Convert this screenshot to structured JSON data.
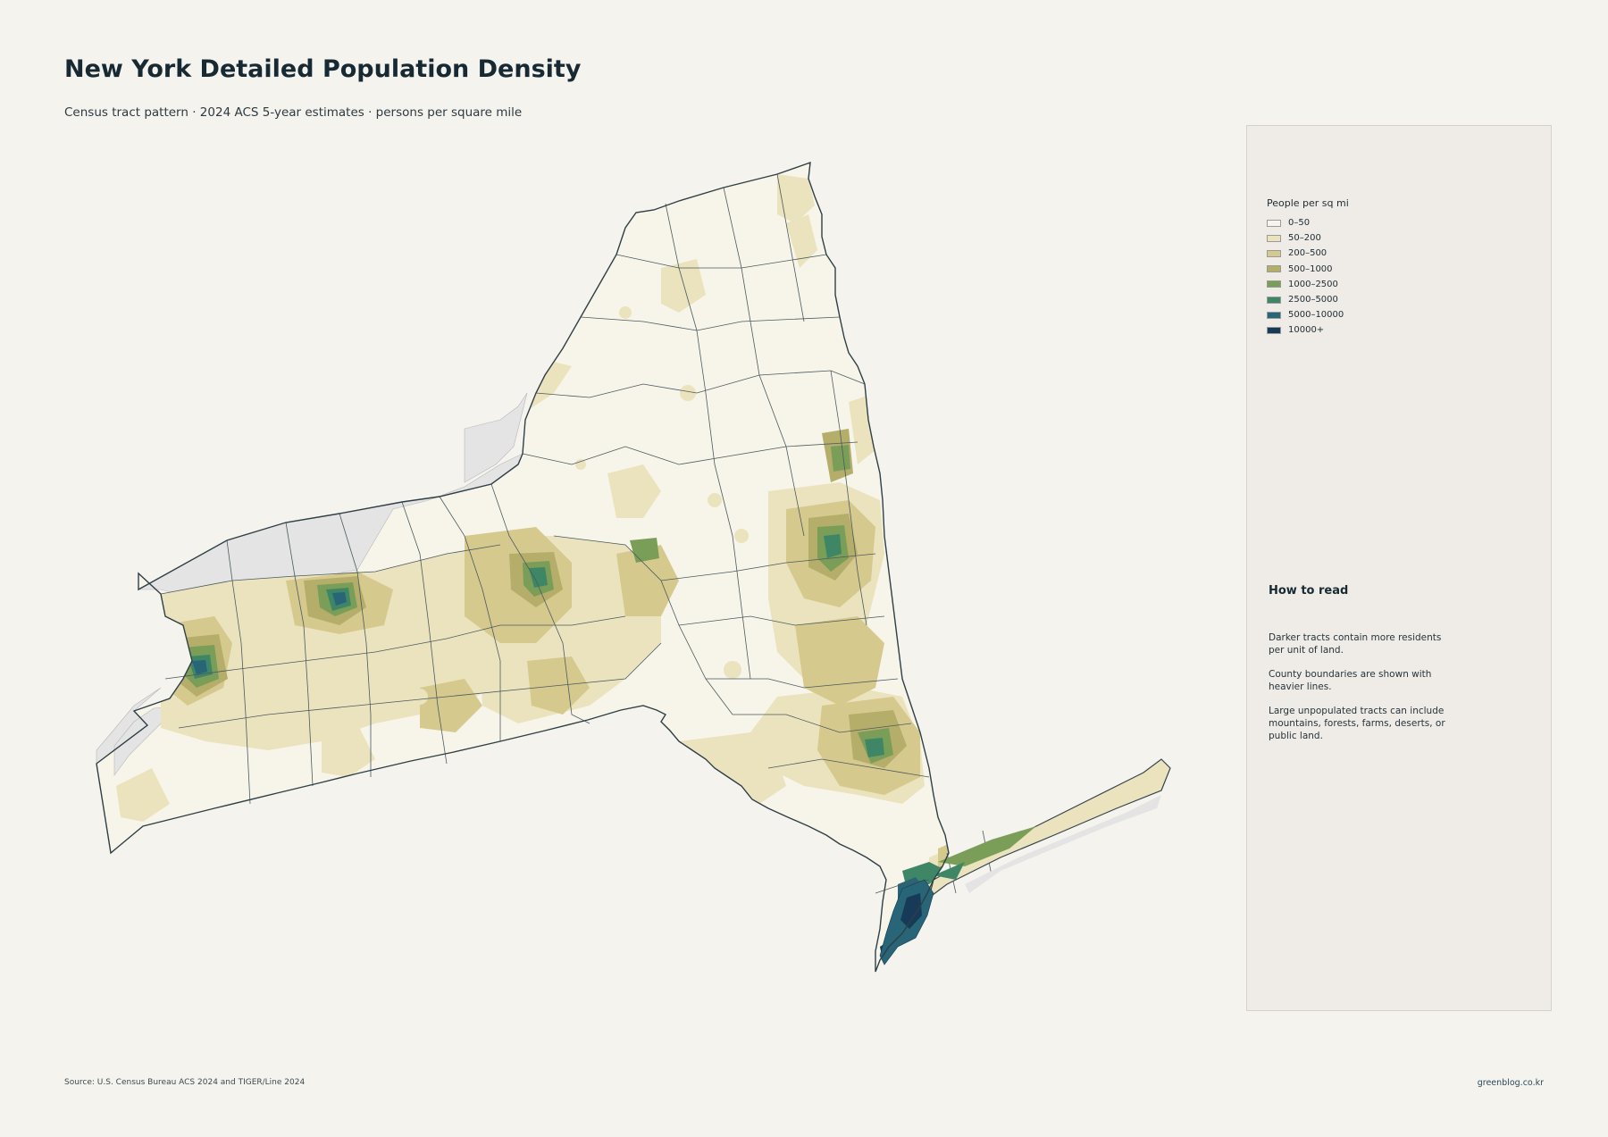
{
  "header": {
    "title": "New York Detailed Population Density",
    "subtitle": "Census tract pattern · 2024 ACS 5-year estimates · persons per square mile"
  },
  "legend": {
    "title": "People per sq mi",
    "items": [
      {
        "label": "0–50",
        "color": "#f7f5e9"
      },
      {
        "label": "50–200",
        "color": "#ebe3bd"
      },
      {
        "label": "200–500",
        "color": "#d6c98e"
      },
      {
        "label": "500–1000",
        "color": "#b5ad6a"
      },
      {
        "label": "1000–2500",
        "color": "#7a9e58"
      },
      {
        "label": "2500–5000",
        "color": "#3f8666"
      },
      {
        "label": "5000–10000",
        "color": "#276577"
      },
      {
        "label": "10000+",
        "color": "#173a59"
      }
    ]
  },
  "howto": {
    "title": "How to read",
    "paragraphs": [
      "Darker tracts contain more residents per unit of land.",
      "County boundaries are shown with heavier lines.",
      "Large unpopulated tracts can include mountains, forests, farms, deserts, or public land."
    ]
  },
  "footer": {
    "source": "Source: U.S. Census Bureau ACS 2024 and TIGER/Line 2024",
    "credit": "greenblog.co.kr"
  },
  "colors": {
    "background": "#f5f3ee",
    "water": "#e4e4e4",
    "county_line": "#3e4e55",
    "panel": "#efece7"
  }
}
